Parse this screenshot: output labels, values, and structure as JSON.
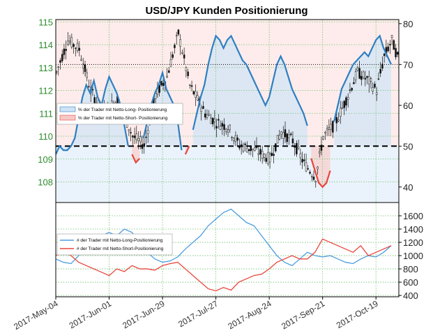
{
  "chart_data": [
    {
      "type": "line",
      "title": "USD/JPY Kunden Positionierung",
      "x_tick_labels": [
        "2017-May-04",
        "2017-Jun-01",
        "2017-Jun-29",
        "2017-Jul-27",
        "2017-Aug-24",
        "2017-Sep-21",
        "2017-Oct-19"
      ],
      "price_axis": {
        "side": "left",
        "ylim": [
          107.1,
          115.1
        ],
        "ticks": [
          "108",
          "109",
          "110",
          "111",
          "112",
          "113",
          "114",
          "115"
        ]
      },
      "sentiment_axis": {
        "side": "right",
        "ylim": [
          36.2,
          81
        ],
        "ticks": [
          "40",
          "50",
          "60",
          "70",
          "80"
        ]
      },
      "reference_line": {
        "value": 50,
        "style": "dashed"
      },
      "legend": [
        {
          "label": "% der Trader mit Netto-Long- Positionierung",
          "color": "#2f7fc1"
        },
        {
          "label": "% der Trader mit Netto-Short- Positionierung",
          "color": "#e8453c"
        }
      ],
      "series": [
        {
          "name": "% der Trader mit Netto-Long- Positionierung",
          "x": [
            0,
            2,
            4,
            6,
            8,
            10,
            12,
            14,
            16,
            18,
            20,
            22,
            24,
            26,
            28,
            30,
            32,
            34,
            36,
            38,
            40,
            42,
            44,
            46,
            48,
            50,
            52,
            54,
            56,
            58,
            60,
            62,
            64,
            66,
            68,
            70,
            72,
            74,
            76,
            78,
            80,
            82,
            84,
            86,
            88,
            90,
            92,
            94,
            96,
            98,
            100,
            102,
            104,
            106,
            108,
            110,
            112,
            114,
            116,
            118,
            120,
            122,
            124,
            126,
            128,
            130,
            132,
            134,
            136,
            138,
            140,
            142,
            144,
            146,
            148,
            150,
            152,
            154,
            156,
            158,
            160,
            162,
            164,
            166,
            168,
            170,
            172,
            174,
            176
          ],
          "values": [
            48,
            50,
            49,
            49,
            50,
            52,
            57,
            62,
            65,
            63,
            66,
            62,
            60,
            64,
            67,
            65,
            63,
            60,
            55,
            50,
            null,
            null,
            null,
            52,
            56,
            60,
            63,
            65,
            68,
            64,
            62,
            60,
            56,
            49,
            null,
            null,
            54,
            58,
            62,
            65,
            70,
            74,
            77,
            76,
            74,
            76,
            77,
            75,
            73,
            71,
            70,
            68,
            66,
            64,
            62,
            60,
            62,
            66,
            70,
            72,
            70,
            67,
            64,
            62,
            60,
            58,
            55,
            null,
            null,
            null,
            null,
            null,
            null,
            56,
            60,
            64,
            66,
            68,
            70,
            71,
            72,
            73,
            72,
            74,
            76,
            77,
            74,
            72,
            70
          ],
          "color": "#2f7fc1"
        },
        {
          "name": "% der Trader mit Netto-Short- Positionierung",
          "x": [
            0,
            2,
            4,
            6,
            8,
            10,
            12,
            14,
            16,
            18,
            20,
            22,
            24,
            26,
            28,
            30,
            32,
            34,
            36,
            38,
            40,
            42,
            44,
            46,
            48,
            50,
            52,
            54,
            56,
            58,
            60,
            62,
            64,
            66,
            68,
            70,
            72,
            74,
            76,
            78,
            80,
            82,
            84,
            86,
            88,
            90,
            92,
            94,
            96,
            98,
            100,
            102,
            104,
            106,
            108,
            110,
            112,
            114,
            116,
            118,
            120,
            122,
            124,
            126,
            128,
            130,
            132,
            134,
            136,
            138,
            140,
            142,
            144,
            146,
            148,
            150,
            152,
            154,
            156,
            158,
            160,
            162,
            164,
            166,
            168,
            170,
            172,
            174,
            176
          ],
          "values": [
            null,
            null,
            null,
            null,
            null,
            null,
            null,
            null,
            null,
            null,
            null,
            null,
            null,
            null,
            null,
            null,
            null,
            null,
            null,
            null,
            48,
            46,
            47,
            null,
            null,
            null,
            null,
            null,
            null,
            null,
            null,
            null,
            null,
            null,
            48,
            50,
            null,
            null,
            null,
            null,
            null,
            null,
            null,
            null,
            null,
            null,
            null,
            null,
            null,
            null,
            null,
            null,
            null,
            null,
            null,
            null,
            null,
            null,
            null,
            null,
            null,
            null,
            null,
            null,
            null,
            null,
            null,
            47,
            44,
            41,
            40,
            41,
            44,
            null,
            null,
            null,
            null,
            null,
            null,
            null,
            null,
            null,
            null,
            null,
            null,
            null,
            null,
            null,
            null
          ],
          "color": "#e8453c"
        }
      ]
    },
    {
      "type": "line",
      "y_axis": {
        "side": "right",
        "ylim": [
          380,
          1800
        ],
        "ticks": [
          "400",
          "600",
          "800",
          "1000",
          "1200",
          "1400",
          "1600"
        ]
      },
      "legend": [
        {
          "label": "# der Trader mit Netto-Long-Positionierung",
          "color": "#4d9de0"
        },
        {
          "label": "# der Trader mit Netto-Short-Positionierung",
          "color": "#e8453c"
        }
      ],
      "series": [
        {
          "name": "# der Trader mit Netto-Long-Positionierung",
          "x": [
            0,
            4,
            8,
            12,
            16,
            20,
            24,
            28,
            32,
            36,
            40,
            44,
            48,
            52,
            56,
            60,
            64,
            68,
            72,
            76,
            80,
            84,
            88,
            92,
            96,
            100,
            104,
            108,
            112,
            116,
            120,
            124,
            128,
            132,
            136,
            140,
            144,
            148,
            152,
            156,
            160,
            164,
            168,
            172,
            176
          ],
          "values": [
            950,
            900,
            880,
            1000,
            1150,
            1250,
            1300,
            1350,
            1300,
            1400,
            1350,
            1200,
            1050,
            950,
            900,
            920,
            980,
            1100,
            1200,
            1300,
            1450,
            1550,
            1650,
            1700,
            1600,
            1500,
            1450,
            1300,
            1150,
            1000,
            900,
            850,
            950,
            1050,
            1000,
            980,
            1000,
            950,
            900,
            880,
            950,
            1000,
            980,
            1050,
            1150
          ],
          "color": "#4d9de0"
        },
        {
          "name": "# der Trader mit Netto-Short-Positionierung",
          "x": [
            0,
            4,
            8,
            12,
            16,
            20,
            24,
            28,
            32,
            36,
            40,
            44,
            48,
            52,
            56,
            60,
            64,
            68,
            72,
            76,
            80,
            84,
            88,
            92,
            96,
            100,
            104,
            108,
            112,
            116,
            120,
            124,
            128,
            132,
            136,
            140,
            144,
            148,
            152,
            156,
            160,
            164,
            168,
            172,
            176
          ],
          "values": [
            1000,
            1050,
            1000,
            900,
            850,
            800,
            750,
            700,
            800,
            760,
            850,
            800,
            800,
            780,
            850,
            880,
            900,
            800,
            700,
            600,
            500,
            470,
            520,
            480,
            600,
            650,
            700,
            720,
            800,
            900,
            950,
            1000,
            950,
            950,
            1050,
            1250,
            1200,
            1150,
            1100,
            1050,
            1150,
            1000,
            1050,
            1100,
            1150
          ],
          "color": "#e8453c"
        }
      ]
    }
  ]
}
